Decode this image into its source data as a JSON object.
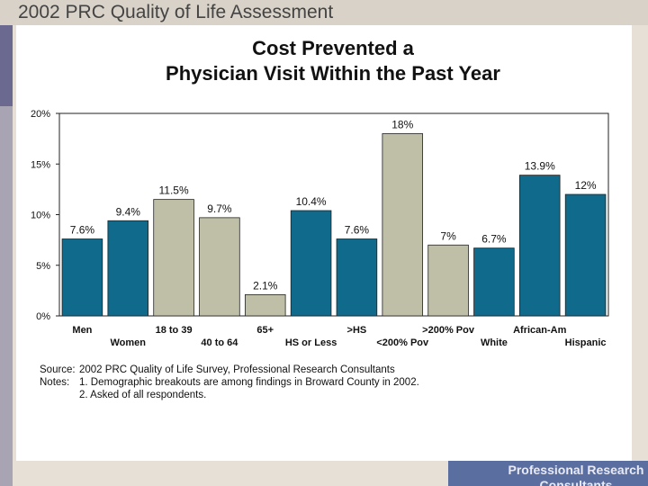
{
  "slide": {
    "title": "2002 PRC Quality of Life Assessment",
    "footer": "Professional Research Consultants"
  },
  "colors": {
    "blue": "#0f6a8c",
    "gray": "#bfbfa8",
    "background": "#e6e0d6"
  },
  "chart_data": {
    "type": "bar",
    "title_line1": "Cost Prevented a",
    "title_line2": "Physician Visit Within the Past Year",
    "categories": [
      "Men",
      "Women",
      "18 to 39",
      "40 to 64",
      "65+",
      "HS or Less",
      ">HS",
      "<200% Pov",
      ">200% Pov",
      "White",
      "African-Am",
      "Hispanic"
    ],
    "values": [
      7.6,
      9.4,
      11.5,
      9.7,
      2.1,
      10.4,
      7.6,
      18,
      7,
      6.7,
      13.9,
      12
    ],
    "value_labels": [
      "7.6%",
      "9.4%",
      "11.5%",
      "9.7%",
      "2.1%",
      "10.4%",
      "7.6%",
      "18%",
      "7%",
      "6.7%",
      "13.9%",
      "12%"
    ],
    "bar_colors": [
      "blue",
      "blue",
      "gray",
      "gray",
      "gray",
      "blue",
      "blue",
      "gray",
      "gray",
      "blue",
      "blue",
      "blue"
    ],
    "ylim": [
      0,
      20
    ],
    "yticks": [
      "0%",
      "5%",
      "10%",
      "15%",
      "20%"
    ],
    "ytick_values": [
      0,
      5,
      10,
      15,
      20
    ],
    "xlabel": "",
    "ylabel": ""
  },
  "notes": {
    "source_label": "Source:",
    "source_text": "2002 PRC Quality of Life Survey, Professional Research Consultants",
    "notes_label": "Notes:",
    "note1": "1. Demographic breakouts are among findings in Broward County in 2002.",
    "note2": "2. Asked of all respondents."
  }
}
